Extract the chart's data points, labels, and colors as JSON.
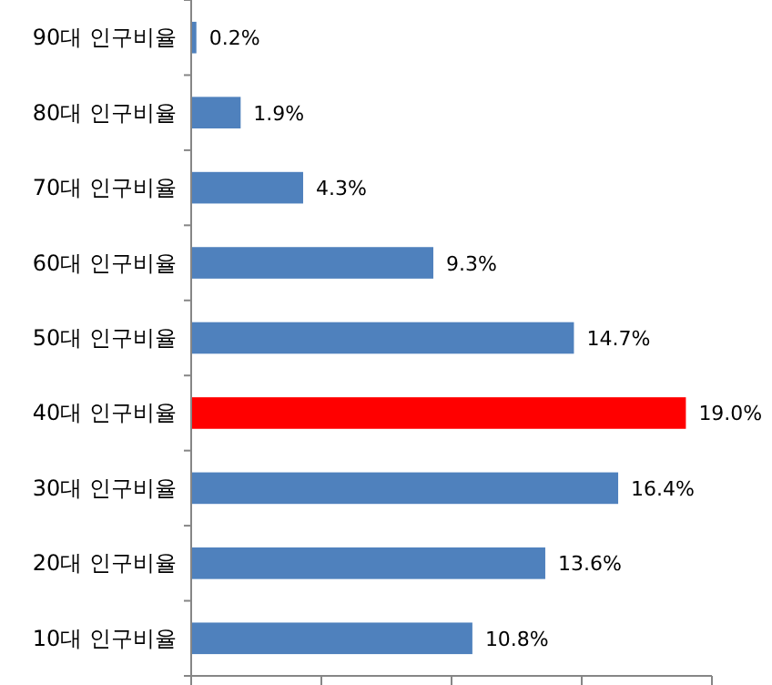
{
  "chart_data": {
    "type": "bar",
    "orientation": "horizontal",
    "categories": [
      "90대 인구비율",
      "80대 인구비율",
      "70대 인구비율",
      "60대 인구비율",
      "50대 인구비율",
      "40대 인구비율",
      "30대 인구비율",
      "20대 인구비율",
      "10대 인구비율"
    ],
    "values": [
      0.2,
      1.9,
      4.3,
      9.3,
      14.7,
      19.0,
      16.4,
      13.6,
      10.8
    ],
    "value_labels": [
      "0.2%",
      "1.9%",
      "4.3%",
      "9.3%",
      "14.7%",
      "19.0%",
      "16.4%",
      "13.6%",
      "10.8%"
    ],
    "colors": [
      "#4f81bd",
      "#4f81bd",
      "#4f81bd",
      "#4f81bd",
      "#4f81bd",
      "#ff0000",
      "#4f81bd",
      "#4f81bd",
      "#4f81bd"
    ],
    "xlim": [
      0,
      20
    ],
    "xticks": [
      {
        "value": 0,
        "label": null
      },
      {
        "value": 5,
        "label": null
      },
      {
        "value": 10,
        "label": null
      },
      {
        "value": 15,
        "label": null
      },
      {
        "value": 20,
        "label": null
      }
    ],
    "grid": false
  }
}
